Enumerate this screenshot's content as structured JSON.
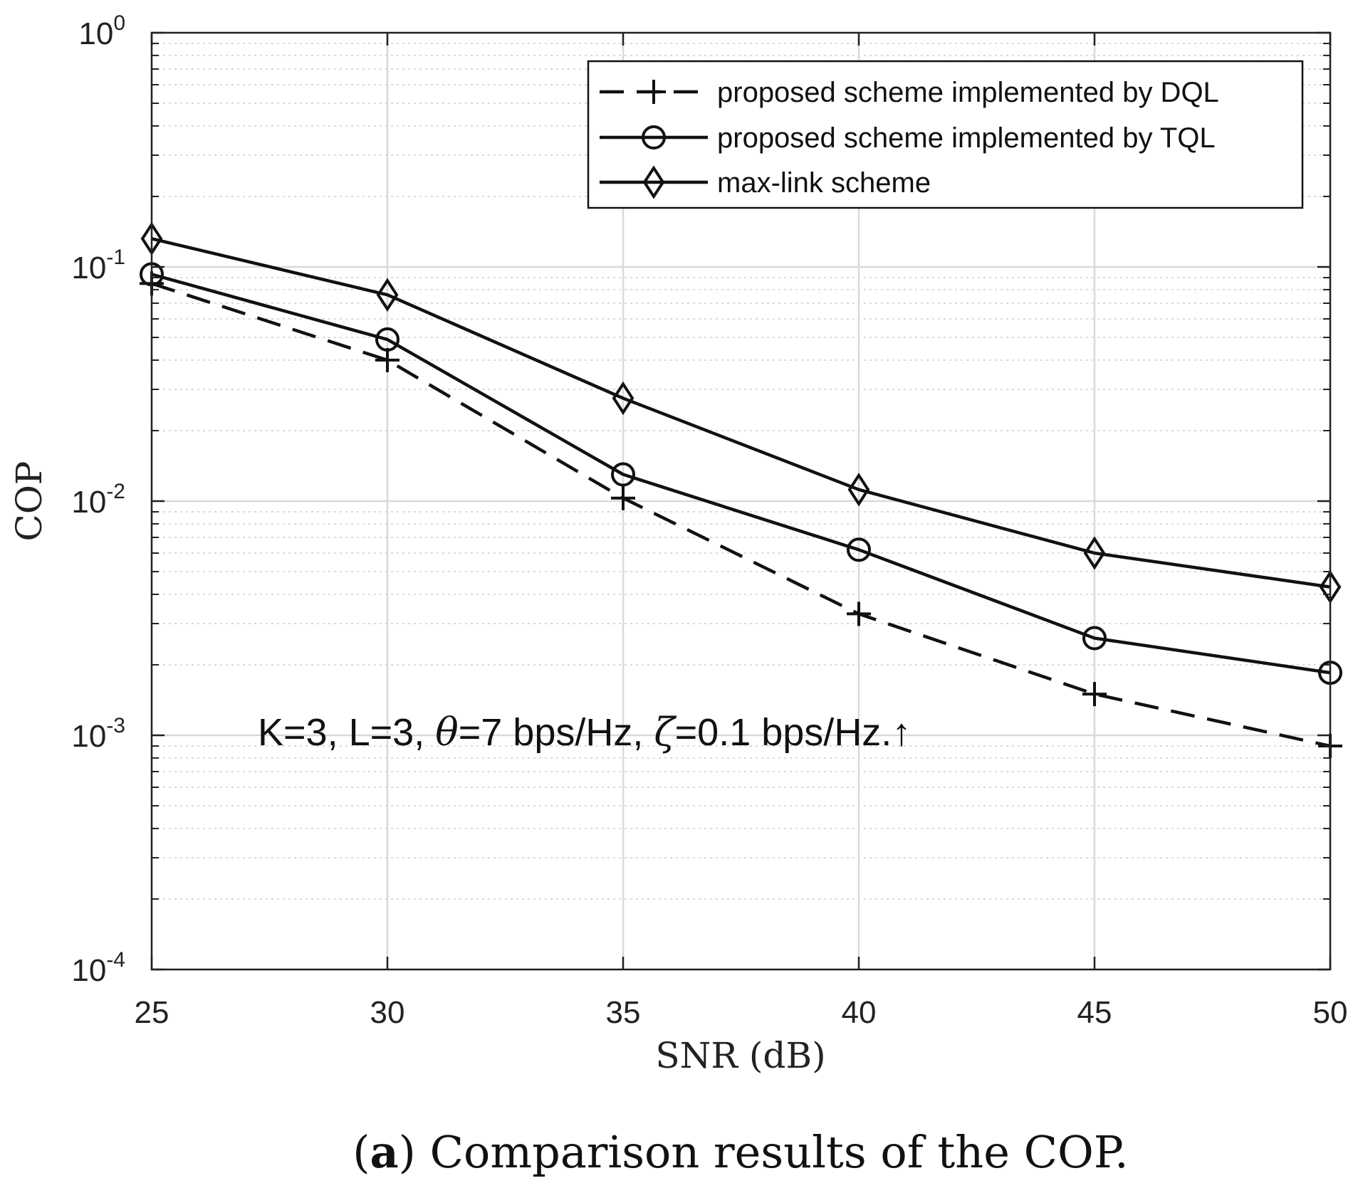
{
  "chart_data": {
    "type": "line",
    "xlabel": "SNR (dB)",
    "ylabel": "COP",
    "yscale": "log",
    "xlim": [
      25,
      50
    ],
    "ylim": [
      0.0001,
      1
    ],
    "grid": true,
    "x": [
      25,
      30,
      35,
      40,
      45,
      50
    ],
    "x_ticks": [
      "25",
      "30",
      "35",
      "40",
      "45",
      "50"
    ],
    "y_ticks": [
      {
        "base": "10",
        "exp": "-4",
        "value": 0.0001
      },
      {
        "base": "10",
        "exp": "-3",
        "value": 0.001
      },
      {
        "base": "10",
        "exp": "-2",
        "value": 0.01
      },
      {
        "base": "10",
        "exp": "-1",
        "value": 0.1
      },
      {
        "base": "10",
        "exp": "0",
        "value": 1
      }
    ],
    "series": [
      {
        "name": "proposed scheme implemented by DQL",
        "values": [
          0.085,
          0.04,
          0.0103,
          0.0033,
          0.0015,
          0.0009
        ],
        "marker": "plus",
        "linestyle": "dashed"
      },
      {
        "name": "proposed scheme implemented by TQL",
        "values": [
          0.093,
          0.049,
          0.013,
          0.0062,
          0.0026,
          0.00185
        ],
        "marker": "circle",
        "linestyle": "solid"
      },
      {
        "name": "max-link scheme",
        "values": [
          0.132,
          0.076,
          0.0275,
          0.0112,
          0.006,
          0.0043
        ],
        "marker": "diamond",
        "linestyle": "solid"
      }
    ],
    "legend_position": "top-right",
    "annotation": {
      "prefix": "K=3, L=3, ",
      "theta_symbol": "θ",
      "theta_value": "=7 bps/Hz, ",
      "zeta_symbol": "ζ",
      "zeta_value": "=0.1 bps/Hz.↑"
    }
  },
  "caption": {
    "label": "(a)",
    "label_bold": "a",
    "text": " Comparison results of the COP."
  },
  "colors": {
    "line": "#111111",
    "grid": "#d9d9d9",
    "axis": "#222222"
  }
}
